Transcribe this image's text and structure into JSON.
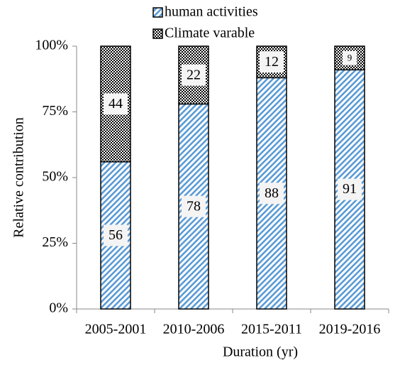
{
  "chart_data": {
    "type": "stacked_bar",
    "categories": [
      "2005-2001",
      "2010-2006",
      "2015-2011",
      "2019-2016"
    ],
    "series": [
      {
        "name": "human activities",
        "color": "#5b9bd5",
        "pattern": "stripes",
        "values": [
          56,
          78,
          88,
          91
        ]
      },
      {
        "name": "Climate varable",
        "color": "#000000",
        "pattern": "checker",
        "values": [
          44,
          22,
          12,
          9
        ]
      }
    ],
    "ylim": [
      0,
      100
    ],
    "yticks": [
      {
        "value": 0,
        "label": "0%"
      },
      {
        "value": 25,
        "label": "25%"
      },
      {
        "value": 50,
        "label": "50%"
      },
      {
        "value": 75,
        "label": "75%"
      },
      {
        "value": 100,
        "label": "100%"
      }
    ],
    "y_label": "Relative contribution",
    "x_label": "Duration (yr)",
    "legend": "top"
  }
}
